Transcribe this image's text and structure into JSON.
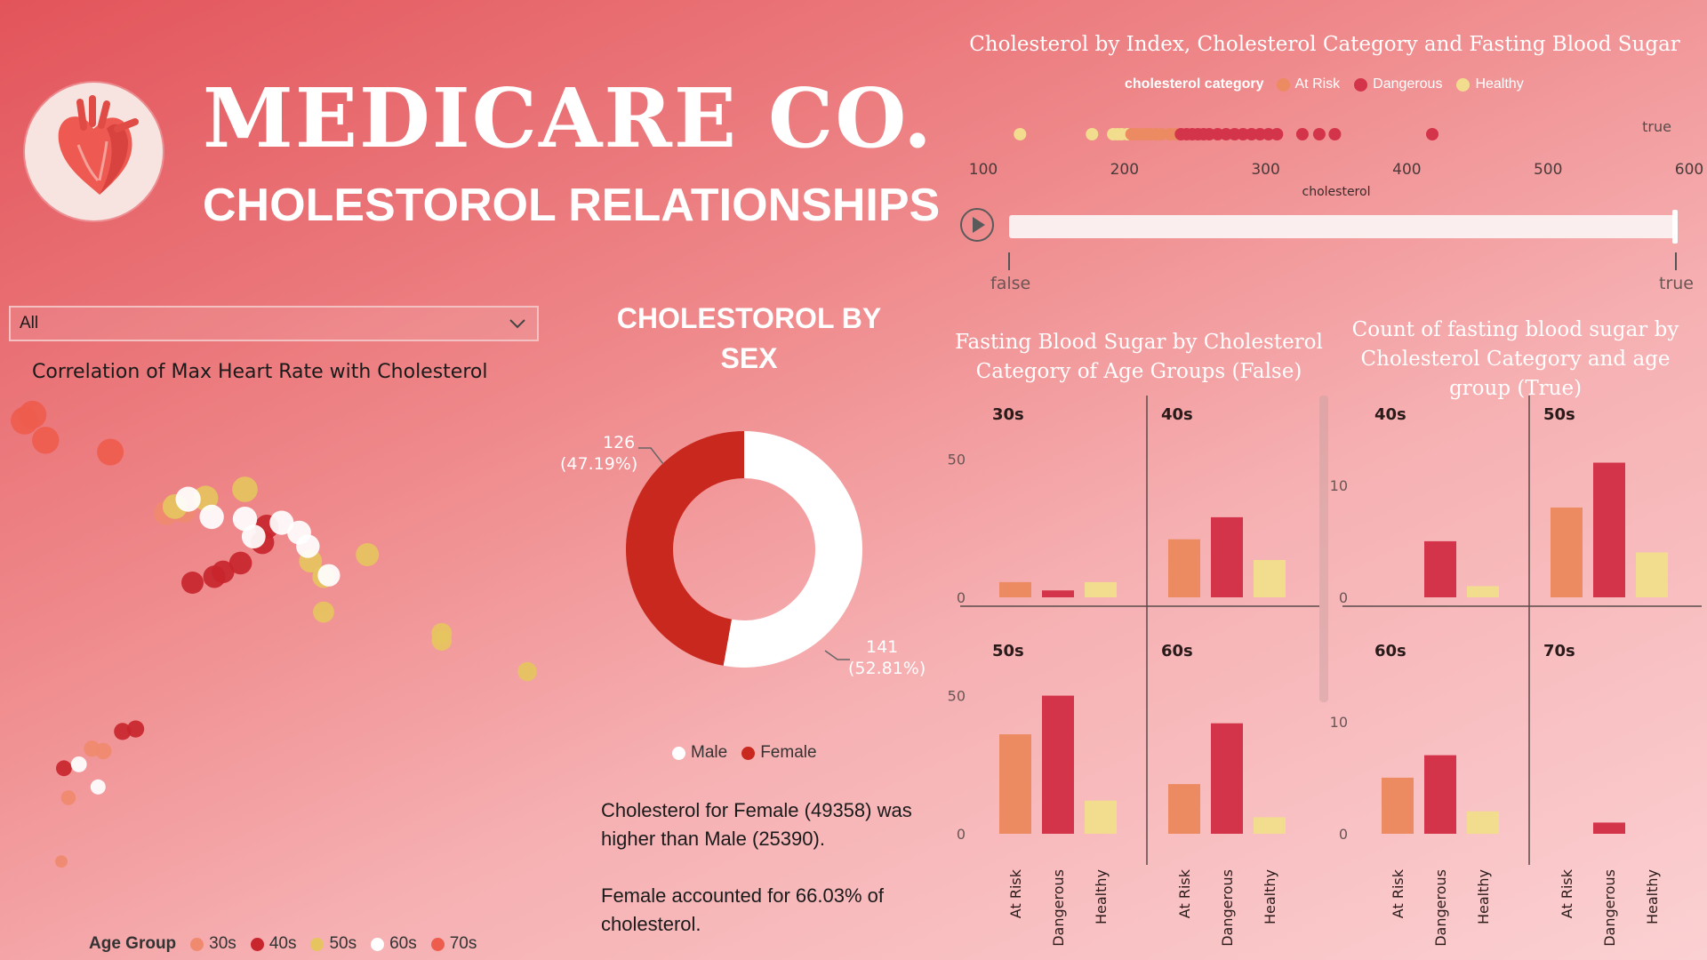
{
  "header": {
    "title": "MEDICARE CO.",
    "subtitle": "CHOLESTOROL RELATIONSHIPS",
    "logo_icon": "heart-icon"
  },
  "slicer": {
    "value": "All"
  },
  "colors": {
    "at_risk": "#ec8a62",
    "dangerous": "#d3344a",
    "healthy": "#f2dd8e",
    "age_30s": "#f08a6f",
    "age_40s": "#c8252d",
    "age_50s": "#e6c45f",
    "age_60s": "#ffffff",
    "age_70s": "#ee5c4d",
    "male": "#ffffff",
    "female": "#c8281d"
  },
  "chart_data": [
    {
      "id": "scatter",
      "type": "scatter",
      "title": "Correlation of Max Heart Rate with Cholesterol",
      "legend": {
        "title": "Age Group",
        "placement": "bottom-left",
        "entries": [
          "30s",
          "40s",
          "50s",
          "60s",
          "70s"
        ]
      },
      "series": [
        {
          "name": "30s",
          "points": [
            [
              60,
              110
            ],
            [
              68,
              240
            ],
            [
              95,
              340
            ],
            [
              108,
              335
            ],
            [
              180,
              820
            ],
            [
              200,
              825
            ]
          ]
        },
        {
          "name": "40s",
          "points": [
            [
              63,
              300
            ],
            [
              130,
              375
            ],
            [
              145,
              380
            ],
            [
              210,
              678
            ],
            [
              235,
              690
            ],
            [
              245,
              700
            ],
            [
              265,
              718
            ],
            [
              290,
              760
            ],
            [
              295,
              792
            ]
          ]
        },
        {
          "name": "50s",
          "points": [
            [
              190,
              833
            ],
            [
              225,
              850
            ],
            [
              270,
              868
            ],
            [
              345,
              722
            ],
            [
              360,
              690
            ],
            [
              410,
              735
            ],
            [
              360,
              618
            ],
            [
              495,
              560
            ],
            [
              495,
              575
            ],
            [
              593,
              497
            ]
          ]
        },
        {
          "name": "60s",
          "points": [
            [
              80,
              308
            ],
            [
              102,
              262
            ],
            [
              205,
              848
            ],
            [
              232,
              812
            ],
            [
              270,
              808
            ],
            [
              280,
              772
            ],
            [
              312,
              800
            ],
            [
              332,
              780
            ],
            [
              342,
              752
            ],
            [
              366,
              693
            ]
          ]
        },
        {
          "name": "70s",
          "points": [
            [
              18,
              1008
            ],
            [
              27,
              1020
            ],
            [
              42,
              968
            ],
            [
              116,
              944
            ]
          ]
        }
      ]
    },
    {
      "id": "donut",
      "type": "pie",
      "title": "CHOLESTOROL BY SEX",
      "legend": {
        "placement": "bottom",
        "entries": [
          "Male",
          "Female"
        ]
      },
      "slices": [
        {
          "name": "Male",
          "value": 141,
          "label": "141",
          "pct": "(52.81%)"
        },
        {
          "name": "Female",
          "value": 126,
          "label": "126",
          "pct": "(47.19%)"
        }
      ]
    },
    {
      "id": "strip",
      "type": "scatter",
      "title": "Cholesterol by Index, Cholesterol Category and Fasting Blood Sugar",
      "legend": {
        "title": "cholesterol category",
        "placement": "top",
        "entries": [
          "At Risk",
          "Dangerous",
          "Healthy"
        ]
      },
      "xlabel": "cholesterol",
      "xlim": [
        100,
        600
      ],
      "xticks": [
        "100",
        "200",
        "300",
        "400",
        "500",
        "600"
      ],
      "row_label": "true",
      "points": {
        "Healthy": [
          126,
          177,
          192,
          195,
          198,
          202
        ],
        "At Risk": [
          205,
          208,
          212,
          215,
          218,
          222,
          226,
          232,
          236
        ],
        "Dangerous": [
          240,
          244,
          248,
          252,
          256,
          260,
          266,
          272,
          278,
          284,
          290,
          296,
          302,
          308,
          326,
          338,
          349,
          418
        ]
      },
      "play_axis": {
        "start_label": "false",
        "end_label": "true",
        "position": 1
      }
    },
    {
      "id": "fbs-false",
      "type": "bar",
      "title": "Fasting Blood Sugar by Cholesterol Category of Age Groups (False)",
      "categories": [
        "At Risk",
        "Dangerous",
        "Healthy"
      ],
      "yticks": [
        "0",
        "50"
      ],
      "ylim": [
        0,
        65
      ],
      "panels": [
        {
          "name": "30s",
          "values": [
            5.5,
            2.5,
            5.5
          ]
        },
        {
          "name": "40s",
          "values": [
            21,
            29,
            13.5
          ]
        },
        {
          "name": "50s",
          "values": [
            36,
            50,
            12
          ]
        },
        {
          "name": "60s",
          "values": [
            18,
            40,
            6
          ]
        }
      ]
    },
    {
      "id": "fbs-true",
      "type": "bar",
      "title": "Count of fasting blood sugar by Cholesterol Category and age group (True)",
      "categories": [
        "At Risk",
        "Dangerous",
        "Healthy"
      ],
      "yticks": [
        "0",
        "10"
      ],
      "ylim": [
        0,
        16
      ],
      "panels": [
        {
          "name": "40s",
          "values": [
            0,
            5,
            1
          ]
        },
        {
          "name": "50s",
          "values": [
            8,
            12,
            4
          ]
        },
        {
          "name": "60s",
          "values": [
            5,
            7,
            2
          ]
        },
        {
          "name": "70s",
          "values": [
            0,
            1,
            0
          ]
        }
      ]
    }
  ],
  "narrative": {
    "p1": "Cholesterol for Female (49358) was higher than Male (25390).",
    "p2": "Female accounted for 66.03% of cholesterol."
  }
}
